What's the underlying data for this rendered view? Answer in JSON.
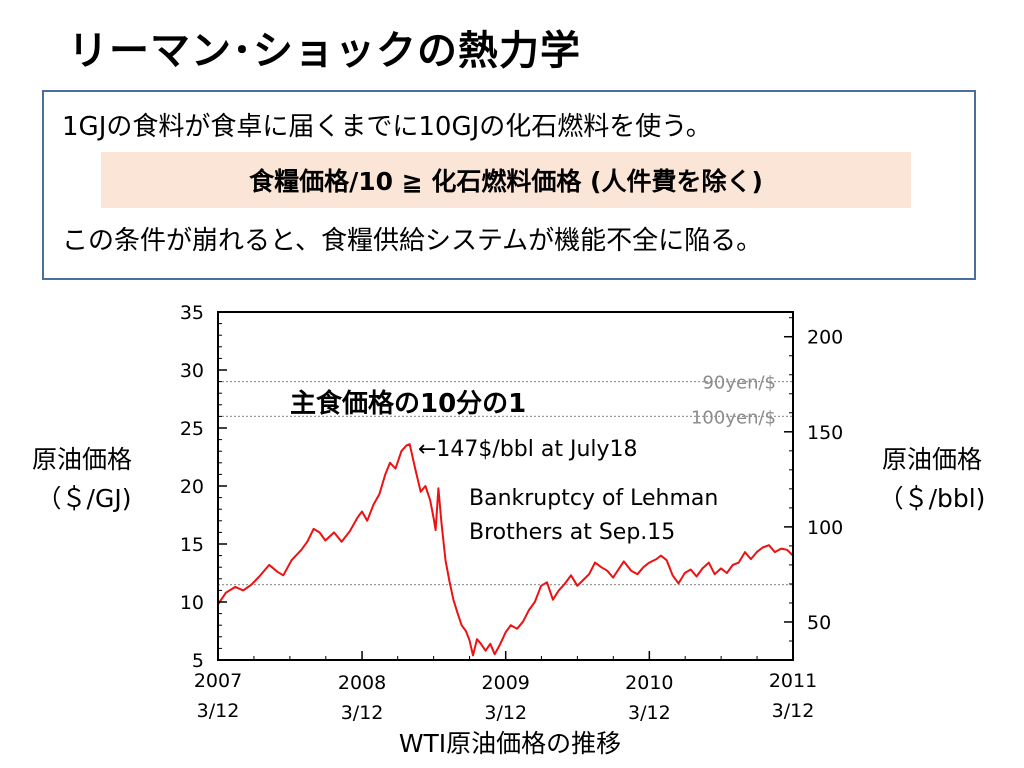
{
  "slide": {
    "title": "リーマン･ショックの熱力学"
  },
  "box": {
    "line1": "1GJの食料が食卓に届くまでに10GJの化石燃料を使う。",
    "formula": "食糧価格/10 ≧ 化石燃料価格 (人件費を除く)",
    "line3": "この条件が崩れると、食糧供給システムが機能不全に陥る。"
  },
  "chart_data": {
    "type": "line",
    "title": "WTI原油価格の推移",
    "ylabel_left": "原油価格（＄/GJ)",
    "ylabel_left_lines": [
      "原油価格",
      "（＄/GJ)"
    ],
    "ylabel_right": "原油価格（＄/bbl)",
    "ylabel_right_lines": [
      "原油価格",
      "（＄/bbl)"
    ],
    "ylim_left": [
      5,
      35
    ],
    "ylim_right": [
      30,
      213
    ],
    "yticks_left": [
      5,
      10,
      15,
      20,
      25,
      30,
      35
    ],
    "yticks_right": [
      50,
      100,
      150,
      200
    ],
    "xlim": [
      "2007-03-12",
      "2011-03-12"
    ],
    "xticks": [
      {
        "x": "2007-03-12",
        "label_year": "2007",
        "label_date": "3/12"
      },
      {
        "x": "2008-03-12",
        "label_year": "2008",
        "label_date": "3/12"
      },
      {
        "x": "2009-03-12",
        "label_year": "2009",
        "label_date": "3/12"
      },
      {
        "x": "2010-03-12",
        "label_year": "2010",
        "label_date": "3/12"
      },
      {
        "x": "2011-03-12",
        "label_year": "2011",
        "label_date": "3/12"
      }
    ],
    "series": [
      {
        "color": "#ee1111",
        "points": [
          [
            "2007-03-12",
            9.8
          ],
          [
            "2007-04-01",
            10.8
          ],
          [
            "2007-04-25",
            11.3
          ],
          [
            "2007-05-15",
            11.0
          ],
          [
            "2007-06-05",
            11.5
          ],
          [
            "2007-06-25",
            12.2
          ],
          [
            "2007-07-20",
            13.2
          ],
          [
            "2007-08-10",
            12.6
          ],
          [
            "2007-08-25",
            12.3
          ],
          [
            "2007-09-15",
            13.6
          ],
          [
            "2007-10-10",
            14.5
          ],
          [
            "2007-10-25",
            15.2
          ],
          [
            "2007-11-10",
            16.3
          ],
          [
            "2007-11-25",
            16.0
          ],
          [
            "2007-12-10",
            15.3
          ],
          [
            "2008-01-01",
            16.0
          ],
          [
            "2008-01-20",
            15.2
          ],
          [
            "2008-02-10",
            16.1
          ],
          [
            "2008-03-01",
            17.3
          ],
          [
            "2008-03-12",
            17.8
          ],
          [
            "2008-03-25",
            17.0
          ],
          [
            "2008-04-10",
            18.4
          ],
          [
            "2008-04-25",
            19.3
          ],
          [
            "2008-05-10",
            21.0
          ],
          [
            "2008-05-22",
            22.0
          ],
          [
            "2008-06-05",
            21.5
          ],
          [
            "2008-06-20",
            23.0
          ],
          [
            "2008-07-03",
            23.5
          ],
          [
            "2008-07-11",
            23.6
          ],
          [
            "2008-07-25",
            21.5
          ],
          [
            "2008-08-08",
            19.5
          ],
          [
            "2008-08-20",
            20.0
          ],
          [
            "2008-09-01",
            18.8
          ],
          [
            "2008-09-10",
            17.2
          ],
          [
            "2008-09-15",
            16.2
          ],
          [
            "2008-09-22",
            19.8
          ],
          [
            "2008-09-30",
            16.8
          ],
          [
            "2008-10-10",
            13.6
          ],
          [
            "2008-10-20",
            11.8
          ],
          [
            "2008-10-30",
            10.2
          ],
          [
            "2008-11-10",
            9.0
          ],
          [
            "2008-11-20",
            8.0
          ],
          [
            "2008-12-01",
            7.5
          ],
          [
            "2008-12-10",
            6.7
          ],
          [
            "2008-12-19",
            5.4
          ],
          [
            "2008-12-29",
            6.8
          ],
          [
            "2009-01-08",
            6.4
          ],
          [
            "2009-01-20",
            5.8
          ],
          [
            "2009-02-01",
            6.4
          ],
          [
            "2009-02-12",
            5.5
          ],
          [
            "2009-02-25",
            6.3
          ],
          [
            "2009-03-12",
            7.4
          ],
          [
            "2009-03-25",
            8.0
          ],
          [
            "2009-04-10",
            7.7
          ],
          [
            "2009-04-25",
            8.3
          ],
          [
            "2009-05-10",
            9.3
          ],
          [
            "2009-05-25",
            10.0
          ],
          [
            "2009-06-10",
            11.4
          ],
          [
            "2009-06-25",
            11.7
          ],
          [
            "2009-07-10",
            10.2
          ],
          [
            "2009-07-25",
            11.0
          ],
          [
            "2009-08-10",
            11.6
          ],
          [
            "2009-08-25",
            12.3
          ],
          [
            "2009-09-10",
            11.4
          ],
          [
            "2009-09-25",
            11.9
          ],
          [
            "2009-10-10",
            12.4
          ],
          [
            "2009-10-25",
            13.4
          ],
          [
            "2009-11-10",
            13.0
          ],
          [
            "2009-11-25",
            12.7
          ],
          [
            "2009-12-10",
            12.1
          ],
          [
            "2010-01-06",
            13.5
          ],
          [
            "2010-01-25",
            12.7
          ],
          [
            "2010-02-10",
            12.4
          ],
          [
            "2010-02-25",
            13.0
          ],
          [
            "2010-03-12",
            13.4
          ],
          [
            "2010-03-30",
            13.7
          ],
          [
            "2010-04-10",
            14.0
          ],
          [
            "2010-04-25",
            13.6
          ],
          [
            "2010-05-10",
            12.3
          ],
          [
            "2010-05-25",
            11.6
          ],
          [
            "2010-06-10",
            12.5
          ],
          [
            "2010-06-25",
            12.8
          ],
          [
            "2010-07-10",
            12.2
          ],
          [
            "2010-07-25",
            12.9
          ],
          [
            "2010-08-10",
            13.4
          ],
          [
            "2010-08-25",
            12.4
          ],
          [
            "2010-09-10",
            12.9
          ],
          [
            "2010-09-25",
            12.5
          ],
          [
            "2010-10-10",
            13.2
          ],
          [
            "2010-10-25",
            13.4
          ],
          [
            "2010-11-10",
            14.3
          ],
          [
            "2010-11-25",
            13.7
          ],
          [
            "2010-12-10",
            14.3
          ],
          [
            "2010-12-25",
            14.7
          ],
          [
            "2011-01-10",
            14.9
          ],
          [
            "2011-01-25",
            14.3
          ],
          [
            "2011-02-10",
            14.6
          ],
          [
            "2011-02-25",
            14.5
          ],
          [
            "2011-03-12",
            14.0
          ]
        ]
      }
    ],
    "reference_lines": [
      {
        "y": 29,
        "label": "90yen/$"
      },
      {
        "y": 26,
        "label": "100yen/$"
      },
      {
        "y": 11.5,
        "label": ""
      }
    ],
    "annotations": {
      "staple_label": "主食価格の10分の1",
      "peak_note": "←147$/bbl at July18",
      "lehman_line1": "Bankruptcy of Lehman",
      "lehman_line2": "Brothers at Sep.15"
    }
  }
}
